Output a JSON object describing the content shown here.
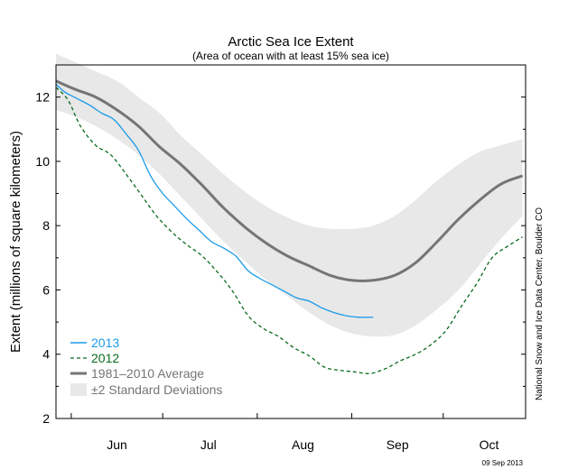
{
  "chart_data": {
    "type": "line",
    "title": "Arctic Sea Ice Extent",
    "subtitle": "(Area of ocean with at least 15% sea ice)",
    "ylabel": "Extent (millions of square kilometers)",
    "xlabel": "",
    "ylim": [
      2,
      13
    ],
    "xlim": [
      "May 27",
      "Oct 28"
    ],
    "yticks": [
      2,
      4,
      6,
      8,
      10,
      12
    ],
    "month_labels": [
      "Jun",
      "Jul",
      "Aug",
      "Sep",
      "Oct"
    ],
    "month_starts": [
      "Jun 1",
      "Jul 1",
      "Aug 1",
      "Sep 1",
      "Oct 1",
      "Oct 28"
    ],
    "month_label_positions": [
      "Jun 16",
      "Jul 16",
      "Aug 16",
      "Sep 16",
      "Oct 16"
    ],
    "grid": false,
    "legend_position": "bottom-left",
    "series": [
      {
        "name": "±2 Standard Deviations",
        "style": "band",
        "color": "#e8e8e8",
        "x": [
          "May 27",
          "Jun 2",
          "Jun 9",
          "Jun 16",
          "Jun 23",
          "Jun 30",
          "Jul 7",
          "Jul 14",
          "Jul 21",
          "Jul 28",
          "Aug 4",
          "Aug 11",
          "Aug 18",
          "Aug 25",
          "Sep 1",
          "Sep 8",
          "Sep 15",
          "Sep 22",
          "Sep 29",
          "Oct 6",
          "Oct 13",
          "Oct 20",
          "Oct 27"
        ],
        "upper": [
          13.35,
          13.1,
          12.8,
          12.5,
          12.0,
          11.5,
          10.8,
          10.2,
          9.6,
          9.05,
          8.6,
          8.25,
          8.0,
          7.9,
          7.9,
          8.0,
          8.3,
          8.8,
          9.4,
          9.9,
          10.3,
          10.5,
          10.7
        ],
        "lower": [
          11.6,
          11.4,
          11.1,
          10.7,
          10.2,
          9.6,
          8.9,
          8.2,
          7.5,
          6.9,
          6.3,
          5.8,
          5.3,
          4.9,
          4.65,
          4.55,
          4.6,
          4.9,
          5.4,
          6.0,
          6.8,
          7.6,
          8.3
        ]
      },
      {
        "name": "1981–2010 Average",
        "style": "solid",
        "color": "#757575",
        "x": [
          "May 27",
          "Jun 2",
          "Jun 9",
          "Jun 16",
          "Jun 23",
          "Jun 30",
          "Jul 7",
          "Jul 14",
          "Jul 21",
          "Jul 28",
          "Aug 4",
          "Aug 11",
          "Aug 18",
          "Aug 25",
          "Sep 1",
          "Sep 8",
          "Sep 15",
          "Sep 22",
          "Sep 29",
          "Oct 6",
          "Oct 13",
          "Oct 20",
          "Oct 27"
        ],
        "values": [
          12.5,
          12.25,
          12.0,
          11.6,
          11.1,
          10.45,
          9.9,
          9.25,
          8.55,
          7.95,
          7.45,
          7.05,
          6.75,
          6.45,
          6.3,
          6.3,
          6.45,
          6.85,
          7.5,
          8.2,
          8.8,
          9.3,
          9.55
        ]
      },
      {
        "name": "2012",
        "style": "dashed",
        "color": "#0a6b1e",
        "x": [
          "May 27",
          "May 31",
          "Jun 4",
          "Jun 9",
          "Jun 14",
          "Jun 19",
          "Jun 24",
          "Jun 29",
          "Jul 4",
          "Jul 9",
          "Jul 14",
          "Jul 19",
          "Jul 24",
          "Jul 29",
          "Aug 3",
          "Aug 8",
          "Aug 13",
          "Aug 18",
          "Aug 23",
          "Aug 28",
          "Sep 2",
          "Sep 7",
          "Sep 12",
          "Sep 17",
          "Sep 22",
          "Sep 27",
          "Oct 2",
          "Oct 7",
          "Oct 12",
          "Oct 17",
          "Oct 22",
          "Oct 27"
        ],
        "values": [
          12.3,
          11.9,
          11.1,
          10.5,
          10.2,
          9.6,
          8.95,
          8.3,
          7.8,
          7.4,
          7.05,
          6.55,
          5.95,
          5.2,
          4.8,
          4.55,
          4.2,
          3.95,
          3.6,
          3.5,
          3.45,
          3.4,
          3.55,
          3.8,
          4.0,
          4.3,
          4.75,
          5.5,
          6.2,
          7.0,
          7.35,
          7.65
        ]
      },
      {
        "name": "2013",
        "style": "solid",
        "color": "#1c9be8",
        "x": [
          "May 27",
          "May 30",
          "Jun 3",
          "Jun 7",
          "Jun 11",
          "Jun 15",
          "Jun 19",
          "Jun 23",
          "Jun 27",
          "Jul 1",
          "Jul 5",
          "Jul 9",
          "Jul 13",
          "Jul 17",
          "Jul 21",
          "Jul 25",
          "Jul 29",
          "Aug 2",
          "Aug 6",
          "Aug 10",
          "Aug 14",
          "Aug 18",
          "Aug 22",
          "Aug 26",
          "Aug 30",
          "Sep 3",
          "Sep 8"
        ],
        "values": [
          12.4,
          12.15,
          11.95,
          11.75,
          11.5,
          11.3,
          10.85,
          10.35,
          9.55,
          9.0,
          8.6,
          8.2,
          7.85,
          7.5,
          7.3,
          7.05,
          6.6,
          6.35,
          6.15,
          5.95,
          5.75,
          5.65,
          5.45,
          5.3,
          5.2,
          5.15,
          5.15
        ]
      }
    ]
  },
  "credit": "National Snow and Ice Data Center, Boulder CO",
  "datestamp": "09 Sep 2013"
}
